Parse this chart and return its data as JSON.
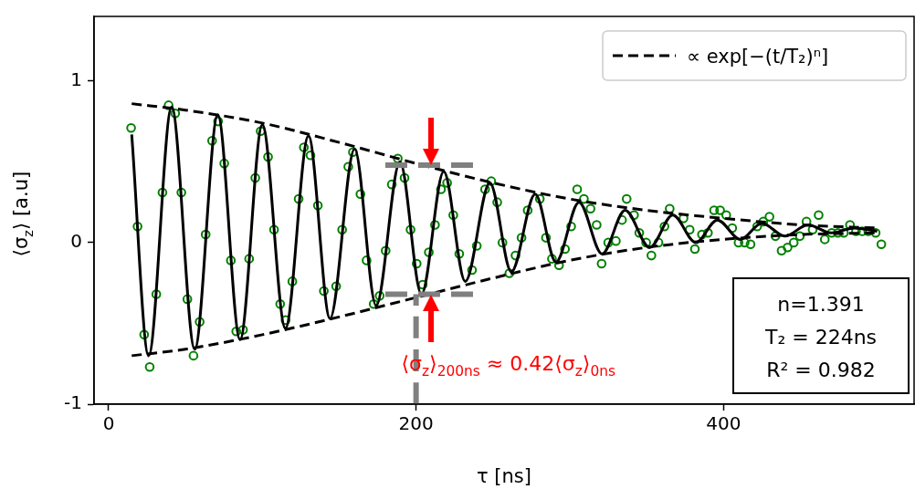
{
  "chart_data": {
    "type": "scatter",
    "xlabel": "τ [ns]",
    "ylabel": "⟨σ$_{z}$⟩ [a.u]",
    "xlim": [
      -9.5,
      524
    ],
    "ylim": [
      -1,
      1.4
    ],
    "xticks": [
      0,
      200,
      400
    ],
    "yticks": [
      -1,
      0,
      1
    ],
    "grid": false,
    "legend": "top right",
    "annotations": [
      {
        "text": "⟨σ$_{z}$⟩$_{200ns}$ ≈ 0.42⟨σ$_{z}$⟩$_{0ns}$",
        "x": 210,
        "y": -0.32
      },
      "n=1.391",
      "T₂ = 224ns",
      "R² = 0.982"
    ],
    "series": [
      {
        "type": "scatter",
        "marker": "circle",
        "color": "#008000",
        "x": [
          14.6,
          18.8,
          23.1,
          26.7,
          31,
          35,
          39,
          43.3,
          47.3,
          51.2,
          55.2,
          59.2,
          63.1,
          67.3,
          71.2,
          75.2,
          79.5,
          83,
          87.4,
          91.4,
          95.4,
          98.9,
          103.7,
          107.6,
          111.6,
          115.1,
          119.5,
          123.6,
          127,
          131.3,
          136.1,
          140,
          148,
          151.9,
          155.9,
          158.9,
          163.8,
          167.8,
          172.4,
          176.3,
          180.2,
          184.2,
          188.1,
          192.5,
          196.4,
          200.4,
          204.3,
          208.3,
          212.3,
          216.2,
          220.2,
          224.2,
          228.1,
          236.4,
          239.5,
          244.9,
          248.9,
          252.8,
          256.2,
          260.7,
          264.7,
          268.6,
          272.6,
          280.5,
          284.5,
          288.4,
          293,
          296.9,
          300.9,
          304.8,
          309.2,
          313.5,
          317.5,
          320.7,
          325,
          330,
          334,
          337,
          341.8,
          345.2,
          349.7,
          353.1,
          357.7,
          361.6,
          365,
          374,
          378,
          381.4,
          386,
          389.9,
          393.9,
          397.8,
          401.8,
          405.7,
          409.8,
          413.8,
          417.6,
          421.9,
          425.9,
          429.9,
          433.8,
          437.8,
          441.7,
          445.7,
          449.7,
          454,
          458,
          461.9,
          465.9,
          470.4,
          474.4,
          478.3,
          482.3,
          486.2,
          490.2,
          494.2,
          499,
          502.7
        ],
        "values": [
          0.71,
          0.1,
          -0.57,
          -0.77,
          -0.32,
          0.31,
          0.85,
          0.8,
          0.31,
          -0.35,
          -0.7,
          -0.49,
          0.05,
          0.63,
          0.75,
          0.49,
          -0.11,
          -0.55,
          -0.54,
          -0.1,
          0.4,
          0.69,
          0.53,
          0.08,
          -0.38,
          -0.48,
          -0.24,
          0.27,
          0.59,
          0.54,
          0.23,
          -0.3,
          -0.27,
          0.08,
          0.47,
          0.56,
          0.3,
          -0.11,
          -0.38,
          -0.33,
          -0.05,
          0.36,
          0.52,
          0.4,
          0.08,
          -0.13,
          -0.26,
          -0.06,
          0.11,
          0.33,
          0.37,
          0.17,
          -0.07,
          -0.17,
          -0.02,
          0.33,
          0.38,
          0.25,
          0,
          -0.19,
          -0.08,
          0.03,
          0.2,
          0.27,
          0.03,
          -0.1,
          -0.14,
          -0.04,
          0.1,
          0.33,
          0.27,
          0.21,
          0.11,
          -0.13,
          0,
          0.01,
          0.14,
          0.27,
          0.17,
          0.06,
          0,
          -0.08,
          0,
          0.1,
          0.21,
          0.15,
          0.08,
          -0.04,
          0.05,
          0.06,
          0.2,
          0.2,
          0.17,
          0.09,
          0,
          0,
          -0.01,
          0.1,
          0.13,
          0.16,
          0.04,
          -0.05,
          -0.03,
          0,
          0.04,
          0.13,
          0.08,
          0.17,
          0.02,
          0.06,
          0.06,
          0.06,
          0.11,
          0.07,
          0.07,
          0.07,
          0.06,
          -0.01
        ]
      },
      {
        "type": "line",
        "color": "#000000",
        "x": [
          15,
          26,
          41,
          56,
          71,
          85.5,
          100,
          115,
          130,
          144,
          160,
          174,
          189.5,
          203.5,
          218,
          232,
          248,
          262,
          277.5,
          291,
          306,
          321,
          336,
          352,
          367,
          382,
          396,
          411,
          425,
          440,
          455,
          470,
          485,
          500
        ],
        "values": [
          0.67,
          -0.7,
          0.84,
          -0.66,
          0.79,
          -0.6,
          0.73,
          -0.53,
          0.66,
          -0.47,
          0.58,
          -0.39,
          0.5,
          -0.32,
          0.44,
          -0.24,
          0.37,
          -0.18,
          0.3,
          -0.12,
          0.25,
          -0.07,
          0.2,
          -0.03,
          0.17,
          0,
          0.14,
          0.02,
          0.12,
          0.04,
          0.11,
          0.06,
          0.09,
          0.07
        ]
      },
      {
        "type": "line",
        "name": "∝ exp[−(t/T₂)ⁿ]",
        "color": "#000000",
        "line_style": "dashed",
        "x": [
          15,
          50,
          100,
          150,
          200,
          250,
          300,
          350,
          400,
          450,
          500
        ],
        "values": [
          0.86,
          0.82,
          0.74,
          0.62,
          0.49,
          0.37,
          0.27,
          0.2,
          0.15,
          0.11,
          0.09
        ]
      },
      {
        "type": "line",
        "color": "#000000",
        "line_style": "dashed",
        "x": [
          15,
          50,
          100,
          150,
          200,
          250,
          300,
          350,
          400,
          450,
          500
        ],
        "values": [
          -0.7,
          -0.66,
          -0.57,
          -0.46,
          -0.34,
          -0.22,
          -0.11,
          -0.03,
          0.02,
          0.05,
          0.06
        ]
      },
      {
        "type": "line",
        "color": "#808080",
        "line_style": "dashed",
        "x": [
          180,
          240
        ],
        "values": [
          0.48,
          0.48
        ]
      },
      {
        "type": "line",
        "color": "#808080",
        "line_style": "dashed",
        "x": [
          180,
          240
        ],
        "values": [
          -0.32,
          -0.32
        ]
      },
      {
        "type": "line",
        "color": "#808080",
        "line_style": "dashed",
        "x": [
          200,
          200
        ],
        "values": [
          -1,
          -0.32
        ]
      }
    ]
  }
}
